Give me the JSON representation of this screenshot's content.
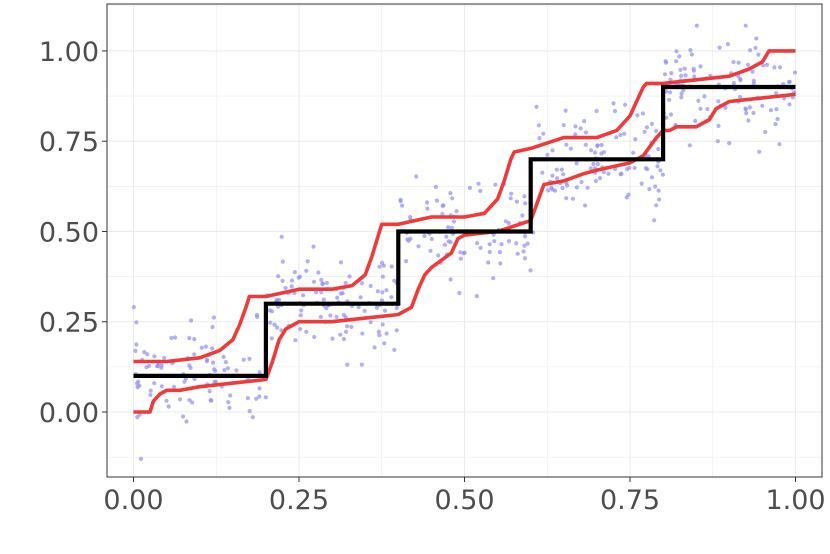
{
  "chart_data": {
    "type": "line",
    "title": "",
    "xlabel": "",
    "ylabel": "",
    "xlim": [
      -0.04,
      1.04
    ],
    "ylim": [
      -0.18,
      1.13
    ],
    "grid": true,
    "legend": "none",
    "x_ticks": [
      0.0,
      0.25,
      0.5,
      0.75,
      1.0
    ],
    "x_tick_labels": [
      "0.00",
      "0.25",
      "0.50",
      "0.75",
      "1.00"
    ],
    "y_ticks": [
      0.0,
      0.25,
      0.5,
      0.75,
      1.0
    ],
    "y_tick_labels": [
      "0.00",
      "0.25",
      "0.50",
      "0.75",
      "1.00"
    ],
    "colors": {
      "truth": "#000000",
      "bands": "#f03a3a",
      "points": "#8f8ff5",
      "grid": "#ebebeb",
      "axis_text": "#4d4d4d",
      "panel_border": "#333333"
    },
    "series": [
      {
        "role": "truth",
        "x": [
          0.0,
          0.2,
          0.2,
          0.4,
          0.4,
          0.6,
          0.6,
          0.8,
          0.8,
          1.0
        ],
        "y": [
          0.1,
          0.1,
          0.3,
          0.3,
          0.5,
          0.5,
          0.7,
          0.7,
          0.9,
          0.9
        ]
      },
      {
        "role": "upper-band",
        "x": [
          0.0,
          0.05,
          0.1,
          0.13,
          0.15,
          0.16,
          0.17,
          0.175,
          0.2,
          0.25,
          0.3,
          0.33,
          0.35,
          0.36,
          0.37,
          0.375,
          0.4,
          0.45,
          0.5,
          0.53,
          0.55,
          0.56,
          0.57,
          0.575,
          0.6,
          0.65,
          0.7,
          0.73,
          0.75,
          0.76,
          0.77,
          0.775,
          0.8,
          0.85,
          0.9,
          0.93,
          0.95,
          0.96,
          1.0
        ],
        "y": [
          0.14,
          0.14,
          0.15,
          0.17,
          0.2,
          0.24,
          0.29,
          0.32,
          0.32,
          0.34,
          0.34,
          0.35,
          0.38,
          0.43,
          0.49,
          0.52,
          0.52,
          0.54,
          0.54,
          0.55,
          0.59,
          0.64,
          0.7,
          0.72,
          0.73,
          0.76,
          0.76,
          0.78,
          0.82,
          0.86,
          0.9,
          0.91,
          0.91,
          0.92,
          0.93,
          0.95,
          0.97,
          1.0,
          1.0
        ]
      },
      {
        "role": "lower-band",
        "x": [
          0.0,
          0.025,
          0.03,
          0.04,
          0.05,
          0.07,
          0.1,
          0.15,
          0.2,
          0.21,
          0.22,
          0.23,
          0.25,
          0.3,
          0.35,
          0.4,
          0.42,
          0.43,
          0.44,
          0.45,
          0.48,
          0.49,
          0.5,
          0.55,
          0.6,
          0.61,
          0.62,
          0.65,
          0.68,
          0.7,
          0.75,
          0.77,
          0.79,
          0.8,
          0.81,
          0.82,
          0.85,
          0.87,
          0.88,
          0.9,
          0.95,
          1.0
        ],
        "y": [
          0.0,
          0.0,
          0.03,
          0.05,
          0.06,
          0.06,
          0.07,
          0.08,
          0.09,
          0.14,
          0.2,
          0.23,
          0.25,
          0.25,
          0.26,
          0.27,
          0.29,
          0.34,
          0.38,
          0.4,
          0.44,
          0.48,
          0.49,
          0.5,
          0.53,
          0.58,
          0.63,
          0.64,
          0.66,
          0.67,
          0.69,
          0.71,
          0.76,
          0.78,
          0.78,
          0.79,
          0.79,
          0.81,
          0.84,
          0.86,
          0.87,
          0.88
        ]
      }
    ],
    "scatter": {
      "role": "observations",
      "count": 500,
      "noise_sd": 0.07,
      "x_range": [
        0.0,
        1.0
      ],
      "y_range": [
        -0.13,
        1.07
      ]
    }
  }
}
